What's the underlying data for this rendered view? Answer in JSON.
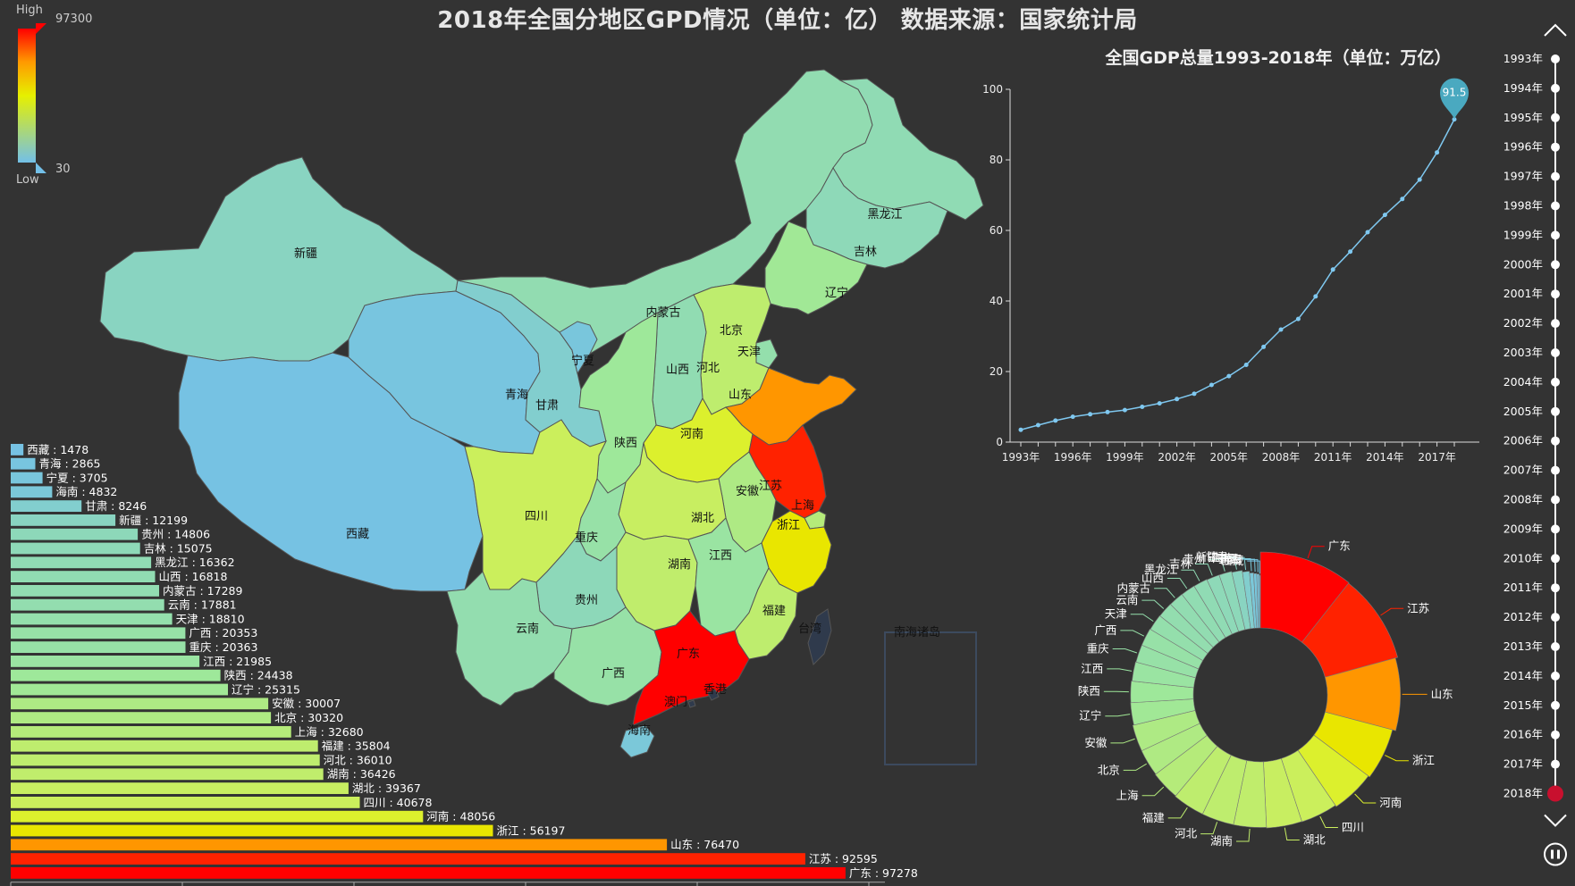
{
  "title": "2018年全国分地区GPD情况（单位：亿） 数据来源：国家统计局",
  "colors": {
    "background": "#333333",
    "low": "#73c0e8",
    "mid": "#e6f000",
    "high": "#ff0000",
    "line": "#7fc8f0",
    "marker": "#4aa9c0",
    "timeline": "#ffffff",
    "timeline_current": "#c8102e"
  },
  "visual_map": {
    "high_label": "High",
    "low_label": "Low",
    "max_text": "97300",
    "min_text": "30",
    "min": 30,
    "max": 97300
  },
  "map": {
    "provinces": [
      {
        "name": "新疆",
        "value": 12199
      },
      {
        "name": "西藏",
        "value": 1478
      },
      {
        "name": "青海",
        "value": 2865
      },
      {
        "name": "甘肃",
        "value": 8246
      },
      {
        "name": "内蒙古",
        "value": 17289
      },
      {
        "name": "黑龙江",
        "value": 16362
      },
      {
        "name": "吉林",
        "value": 15075
      },
      {
        "name": "辽宁",
        "value": 25315
      },
      {
        "name": "宁夏",
        "value": 3705
      },
      {
        "name": "北京",
        "value": 30320
      },
      {
        "name": "天津",
        "value": 18810
      },
      {
        "name": "河北",
        "value": 36010
      },
      {
        "name": "山西",
        "value": 16818
      },
      {
        "name": "山东",
        "value": 76470
      },
      {
        "name": "陕西",
        "value": 24438
      },
      {
        "name": "河南",
        "value": 48056
      },
      {
        "name": "江苏",
        "value": 92595
      },
      {
        "name": "安徽",
        "value": 30007
      },
      {
        "name": "上海",
        "value": 32680
      },
      {
        "name": "四川",
        "value": 40678
      },
      {
        "name": "湖北",
        "value": 39367
      },
      {
        "name": "重庆",
        "value": 20363
      },
      {
        "name": "浙江",
        "value": 56197
      },
      {
        "name": "湖南",
        "value": 36426
      },
      {
        "name": "江西",
        "value": 21985
      },
      {
        "name": "贵州",
        "value": 14806
      },
      {
        "name": "云南",
        "value": 17881
      },
      {
        "name": "福建",
        "value": 35804
      },
      {
        "name": "广西",
        "value": 20353
      },
      {
        "name": "广东",
        "value": 97278
      },
      {
        "name": "海南",
        "value": 4832
      },
      {
        "name": "台湾",
        "value": null
      },
      {
        "name": "香港",
        "value": null
      },
      {
        "name": "澳门",
        "value": null
      }
    ],
    "south_sea_label": "南海诸岛"
  },
  "chart_data": [
    {
      "type": "bar",
      "orientation": "horizontal",
      "categories": [
        "西藏",
        "青海",
        "宁夏",
        "海南",
        "甘肃",
        "新疆",
        "贵州",
        "吉林",
        "黑龙江",
        "山西",
        "内蒙古",
        "云南",
        "天津",
        "广西",
        "重庆",
        "江西",
        "陕西",
        "辽宁",
        "安徽",
        "北京",
        "上海",
        "福建",
        "河北",
        "湖南",
        "湖北",
        "四川",
        "河南",
        "浙江",
        "山东",
        "江苏",
        "广东"
      ],
      "values": [
        1478,
        2865,
        3705,
        4832,
        8246,
        12199,
        14806,
        15075,
        16362,
        16818,
        17289,
        17881,
        18810,
        20353,
        20363,
        21985,
        24438,
        25315,
        30007,
        30320,
        32680,
        35804,
        36010,
        36426,
        39367,
        40678,
        48056,
        56197,
        76470,
        92595,
        97278
      ],
      "xlim": [
        0,
        100000
      ]
    },
    {
      "type": "line",
      "title": "全国GDP总量1993-2018年（单位：万亿）",
      "x": [
        1993,
        1994,
        1995,
        1996,
        1997,
        1998,
        1999,
        2000,
        2001,
        2002,
        2003,
        2004,
        2005,
        2006,
        2007,
        2008,
        2009,
        2010,
        2011,
        2012,
        2013,
        2014,
        2015,
        2016,
        2017,
        2018
      ],
      "x_tick_labels": [
        "1993年",
        "1996年",
        "1999年",
        "2002年",
        "2005年",
        "2008年",
        "2011年",
        "2014年",
        "2017年"
      ],
      "y": [
        3.5,
        4.8,
        6.1,
        7.2,
        7.9,
        8.5,
        9.1,
        10.0,
        11.0,
        12.2,
        13.7,
        16.2,
        18.7,
        21.9,
        27.0,
        31.9,
        34.9,
        41.3,
        48.9,
        54.0,
        59.5,
        64.4,
        68.9,
        74.4,
        82.1,
        91.5
      ],
      "ylim": [
        0,
        100
      ],
      "y_ticks": [
        0,
        20,
        40,
        60,
        80,
        100
      ],
      "marker_label": "91.5"
    },
    {
      "type": "pie",
      "donut": true,
      "labels": [
        "广东",
        "江苏",
        "山东",
        "浙江",
        "河南",
        "四川",
        "湖北",
        "湖南",
        "河北",
        "福建",
        "上海",
        "北京",
        "安徽",
        "辽宁",
        "陕西",
        "江西",
        "重庆",
        "广西",
        "天津",
        "云南",
        "内蒙古",
        "山西",
        "黑龙江",
        "吉林",
        "贵州",
        "新疆",
        "甘肃",
        "海南",
        "宁夏",
        "青海",
        "西藏"
      ],
      "values": [
        97278,
        92595,
        76470,
        56197,
        48056,
        40678,
        39367,
        36426,
        36010,
        35804,
        32680,
        30320,
        30007,
        25315,
        24438,
        21985,
        20363,
        20353,
        18810,
        17881,
        17289,
        16818,
        16362,
        15075,
        14806,
        12199,
        8246,
        4832,
        3705,
        2865,
        1478
      ]
    }
  ],
  "timeline": {
    "years": [
      "1993年",
      "1994年",
      "1995年",
      "1996年",
      "1997年",
      "1998年",
      "1999年",
      "2000年",
      "2001年",
      "2002年",
      "2003年",
      "2004年",
      "2005年",
      "2006年",
      "2007年",
      "2008年",
      "2009年",
      "2010年",
      "2011年",
      "2012年",
      "2013年",
      "2014年",
      "2015年",
      "2016年",
      "2017年",
      "2018年"
    ],
    "current": "2018年"
  }
}
